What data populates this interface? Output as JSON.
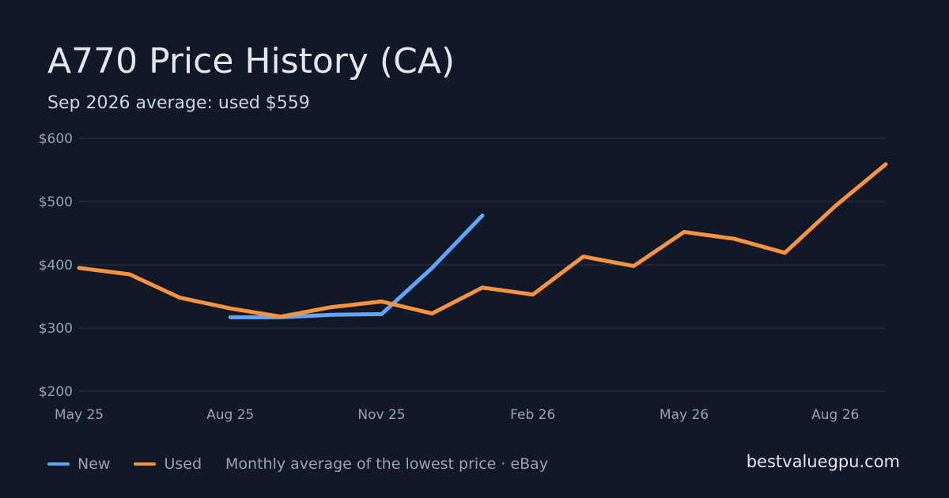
{
  "header": {
    "title": "A770 Price History (CA)",
    "subtitle": "Sep 2026 average: used $559"
  },
  "footer": {
    "note": "Monthly average of the lowest price · eBay",
    "brand": "bestvaluegpu.com"
  },
  "colors": {
    "background": "#111827",
    "grid": "#263041",
    "new": "#60a5fa",
    "used": "#fb923c"
  },
  "chart_data": {
    "type": "line",
    "title": "A770 Price History (CA)",
    "subtitle": "Sep 2026 average: used $559",
    "x": [
      "2025-05",
      "2025-06",
      "2025-07",
      "2025-08",
      "2025-09",
      "2025-10",
      "2025-11",
      "2025-12",
      "2026-01",
      "2026-02",
      "2026-03",
      "2026-04",
      "2026-05",
      "2026-06",
      "2026-07",
      "2026-08",
      "2026-09"
    ],
    "x_tick_labels": [
      {
        "x": "2025-05",
        "label": "May 25"
      },
      {
        "x": "2025-08",
        "label": "Aug 25"
      },
      {
        "x": "2025-11",
        "label": "Nov 25"
      },
      {
        "x": "2026-02",
        "label": "Feb 26"
      },
      {
        "x": "2026-05",
        "label": "May 26"
      },
      {
        "x": "2026-08",
        "label": "Aug 26"
      }
    ],
    "y_tick_labels": [
      "$200",
      "$300",
      "$400",
      "$500",
      "$600"
    ],
    "y_ticks": [
      200,
      300,
      400,
      500,
      600
    ],
    "ylim": [
      200,
      600
    ],
    "grid": true,
    "legend": "bottom-left",
    "series": [
      {
        "name": "New",
        "color": "#60a5fa",
        "values": [
          null,
          null,
          null,
          317,
          317,
          321,
          322,
          395,
          478,
          null,
          null,
          null,
          null,
          null,
          null,
          null,
          null
        ]
      },
      {
        "name": "Used",
        "color": "#fb923c",
        "values": [
          395,
          385,
          348,
          331,
          318,
          333,
          342,
          323,
          364,
          353,
          413,
          398,
          452,
          441,
          419,
          493,
          559
        ]
      }
    ]
  }
}
